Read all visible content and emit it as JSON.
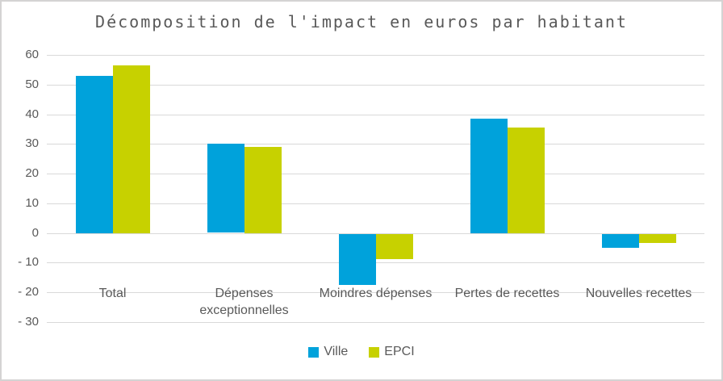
{
  "chart_data": {
    "type": "bar",
    "title": "Décomposition de l'impact en euros par habitant",
    "categories": [
      "Total",
      "Dépenses exceptionnelles",
      "Moindres dépenses",
      "Pertes de recettes",
      "Nouvelles recettes"
    ],
    "series": [
      {
        "name": "Ville",
        "color": "#00A2DB",
        "values": [
          53,
          30,
          -17,
          38.5,
          -4.5
        ]
      },
      {
        "name": "EPCI",
        "color": "#C7D100",
        "values": [
          56.5,
          29,
          -8.5,
          35.5,
          -3
        ]
      }
    ],
    "xlabel": "",
    "ylabel": "",
    "ylim": [
      -30,
      60
    ],
    "ytick_step": 10,
    "ytick_labels": [
      "60",
      "50",
      "40",
      "30",
      "20",
      "10",
      "0",
      "- 10",
      "- 20",
      "- 30"
    ],
    "grid": true,
    "legend_position": "bottom",
    "units": "euros par habitant"
  },
  "colors": {
    "series_ville": "#00A2DB",
    "series_epci": "#C7D100",
    "gridline": "#D9D9D9",
    "text": "#595959",
    "frame_border": "#D4D3D3",
    "background": "#FFFFFF"
  }
}
